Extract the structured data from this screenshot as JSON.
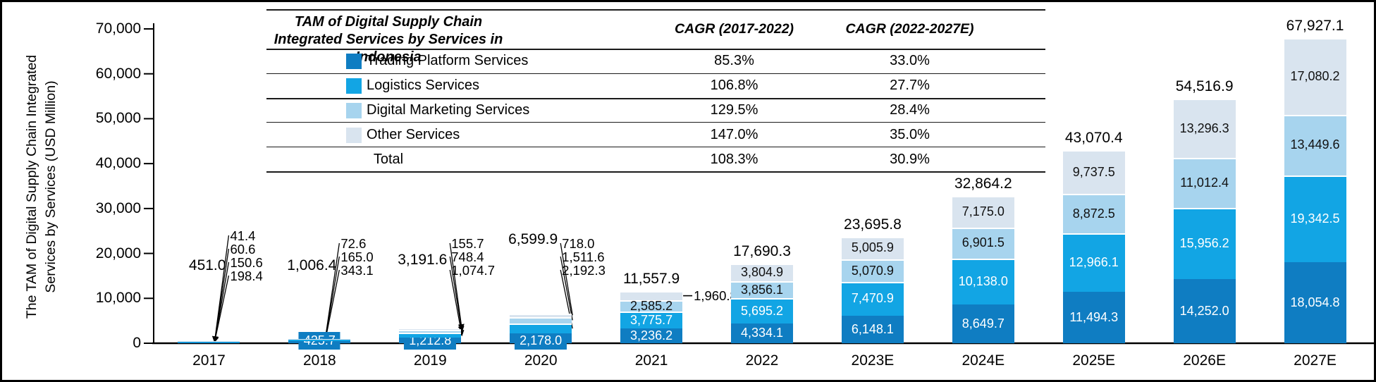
{
  "y_axis": {
    "title_line1": "The TAM of Digital Supply Chain Integrated",
    "title_line2": "Services by Services (USD Million)"
  },
  "chart_data": {
    "type": "bar",
    "stacked": true,
    "title": "TAM of Digital Supply Chain Integrated Services by Services in Indonesia",
    "categories": [
      "2017",
      "2018",
      "2019",
      "2020",
      "2021",
      "2022",
      "2023E",
      "2024E",
      "2025E",
      "2026E",
      "2027E"
    ],
    "series": [
      {
        "name": "Trading Platform Services",
        "color": "#0F7DC2",
        "values": [
          198.4,
          425.7,
          1212.8,
          2178.0,
          3236.2,
          4334.1,
          6148.1,
          8649.7,
          11494.3,
          14252.0,
          18054.8
        ]
      },
      {
        "name": "Logistics Services",
        "color": "#12A5E4",
        "values": [
          150.6,
          343.1,
          1074.7,
          2192.3,
          3775.7,
          5695.2,
          7470.9,
          10138.0,
          12966.1,
          15956.2,
          19342.5
        ]
      },
      {
        "name": "Digital Marketing Services",
        "color": "#A7D4EE",
        "values": [
          60.6,
          165.0,
          748.4,
          1511.6,
          2585.2,
          3856.1,
          5070.9,
          6901.5,
          8872.5,
          11012.4,
          13449.6
        ]
      },
      {
        "name": "Other Services",
        "color": "#D9E4EF",
        "values": [
          41.4,
          72.6,
          155.7,
          718.0,
          1960.8,
          3804.9,
          5005.9,
          7175.0,
          9737.5,
          13296.3,
          17080.2
        ]
      }
    ],
    "totals": [
      451.0,
      1006.4,
      3191.6,
      6599.9,
      11557.9,
      17690.3,
      23695.8,
      32864.2,
      43070.4,
      54516.9,
      67927.1
    ],
    "ylim": [
      0,
      70000
    ],
    "y_ticks": [
      0,
      10000,
      20000,
      30000,
      40000,
      50000,
      60000,
      70000
    ],
    "grid": false,
    "legend_position": "table-overlay-top"
  },
  "table": {
    "title": "TAM of Digital Supply Chain Integrated Services by Services in Indonesia",
    "columns": [
      "CAGR (2017-2022)",
      "CAGR (2022-2027E)"
    ],
    "rows": [
      {
        "label": "Trading Platform Services",
        "swatch_color": "#0F7DC2",
        "values": [
          "85.3%",
          "33.0%"
        ]
      },
      {
        "label": "Logistics Services",
        "swatch_color": "#12A5E4",
        "values": [
          "106.8%",
          "27.7%"
        ]
      },
      {
        "label": "Digital Marketing Services",
        "swatch_color": "#A7D4EE",
        "values": [
          "129.5%",
          "28.4%"
        ]
      },
      {
        "label": "Other Services",
        "swatch_color": "#D9E4EF",
        "values": [
          "147.0%",
          "35.0%"
        ]
      },
      {
        "label": "Total",
        "swatch_color": null,
        "values": [
          "108.3%",
          "30.9%"
        ]
      }
    ]
  }
}
